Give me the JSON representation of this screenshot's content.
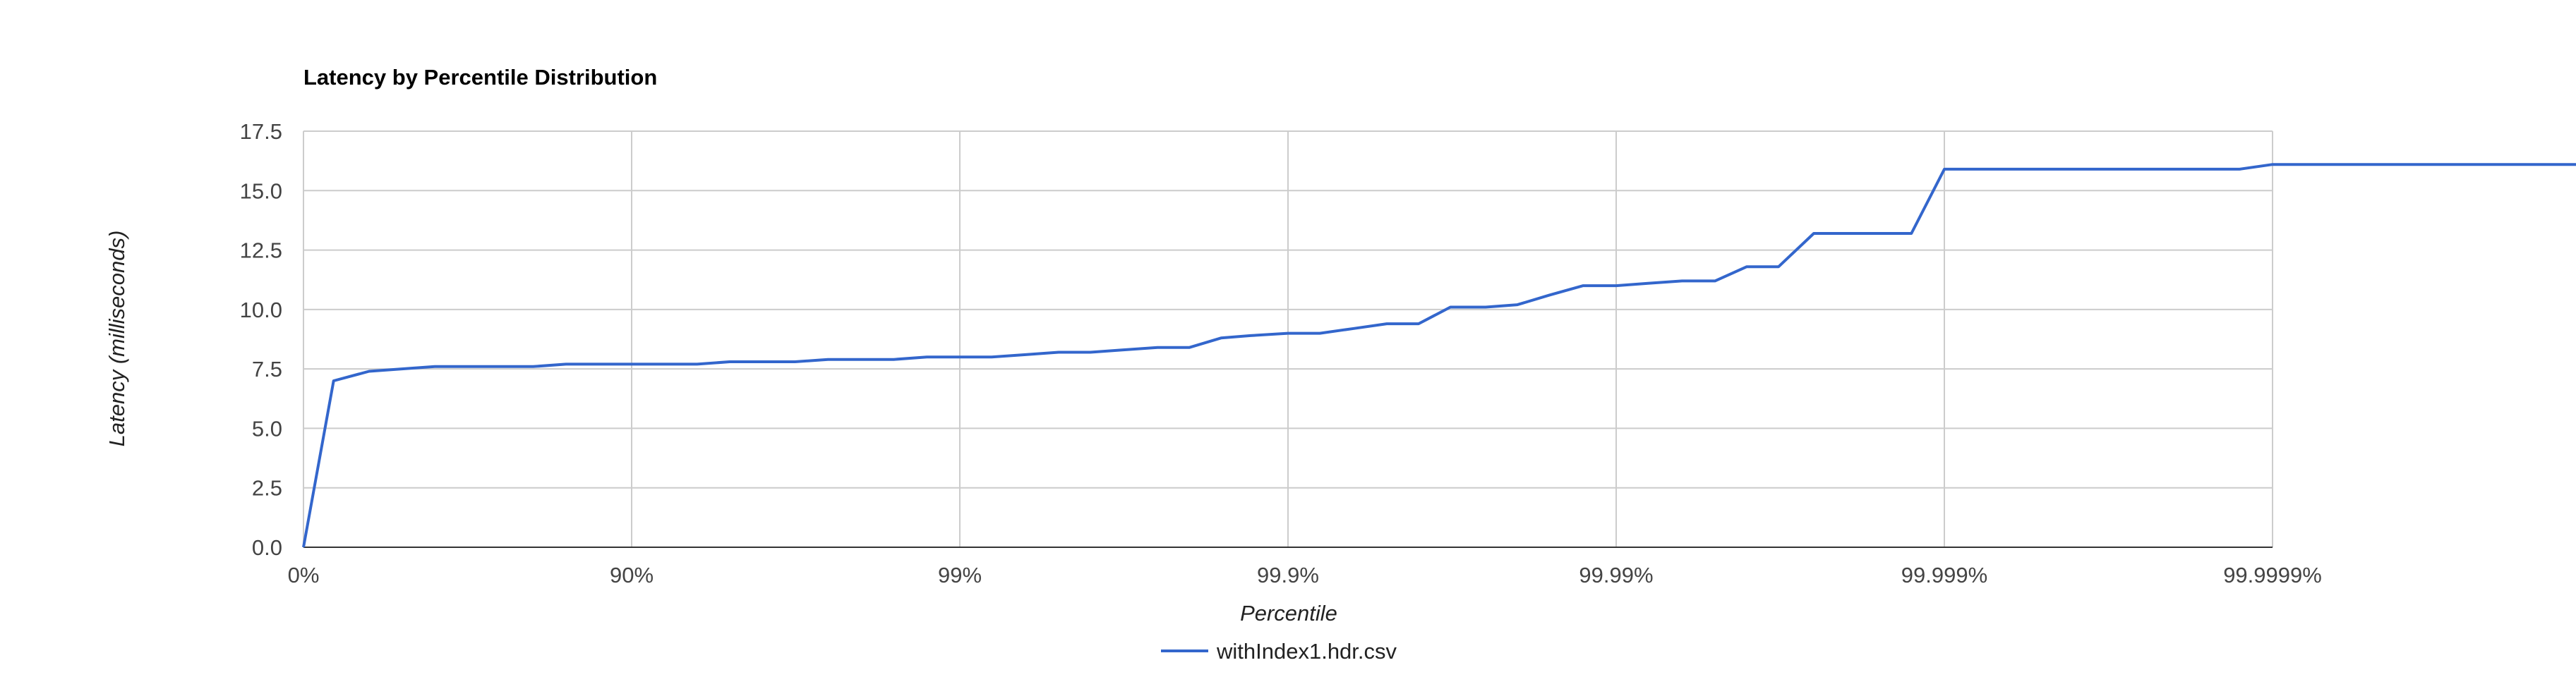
{
  "chart_data": {
    "type": "line",
    "title": "Latency by Percentile Distribution",
    "xlabel": "Percentile",
    "ylabel": "Latency (milliseconds)",
    "x_scale": "log-percentile",
    "x_ticks": [
      "0%",
      "90%",
      "99%",
      "99.9%",
      "99.99%",
      "99.999%",
      "99.9999%"
    ],
    "y_ticks": [
      "0.0",
      "2.5",
      "5.0",
      "7.5",
      "10.0",
      "12.5",
      "15.0",
      "17.5"
    ],
    "ylim": [
      0,
      17.5
    ],
    "grid": true,
    "legend_position": "bottom",
    "series": [
      {
        "name": "withIndex1.hdr.csv",
        "color": "#3366cc",
        "x": [
          0,
          19.07,
          36.9,
          49.88,
          60.19,
          68.38,
          74.88,
          80.04,
          84.14,
          87.4,
          89.99,
          92.04,
          93.68,
          94.97,
          96.0,
          96.82,
          97.48,
          97.99,
          98.41,
          98.74,
          99.0,
          99.2,
          99.37,
          99.5,
          99.6,
          99.68,
          99.75,
          99.8,
          99.84,
          99.87,
          99.9,
          99.92,
          99.937,
          99.95,
          99.96,
          99.968,
          99.975,
          99.98,
          99.984,
          99.9874,
          99.99,
          99.992,
          99.9937,
          99.995,
          99.996,
          99.9968,
          99.9975,
          99.998,
          99.9984,
          99.99874,
          99.999,
          99.9992,
          99.99937,
          99.9995,
          99.9996,
          99.99968,
          99.99975,
          99.9998,
          99.99984,
          99.999874,
          99.9999,
          99.99992,
          99.999937,
          99.99995,
          99.99996,
          99.999968,
          99.999975,
          99.99998,
          99.999984,
          99.9999874,
          99.99999,
          99.999992
        ],
        "y": [
          0.0,
          7.0,
          7.4,
          7.5,
          7.6,
          7.6,
          7.6,
          7.6,
          7.7,
          7.7,
          7.7,
          7.7,
          7.7,
          7.8,
          7.8,
          7.8,
          7.9,
          7.9,
          7.9,
          8.0,
          8.0,
          8.0,
          8.1,
          8.2,
          8.2,
          8.3,
          8.4,
          8.4,
          8.8,
          8.9,
          9.0,
          9.0,
          9.2,
          9.4,
          9.4,
          10.1,
          10.1,
          10.2,
          10.6,
          11.0,
          11.0,
          11.1,
          11.2,
          11.2,
          11.8,
          11.8,
          13.2,
          13.2,
          13.2,
          13.2,
          15.9,
          15.9,
          15.9,
          15.9,
          15.9,
          15.9,
          15.9,
          15.9,
          15.9,
          15.9,
          16.1,
          16.1,
          16.1,
          16.1,
          16.1,
          16.1,
          16.1,
          16.1,
          16.1,
          16.1,
          16.1,
          16.1
        ]
      }
    ]
  }
}
